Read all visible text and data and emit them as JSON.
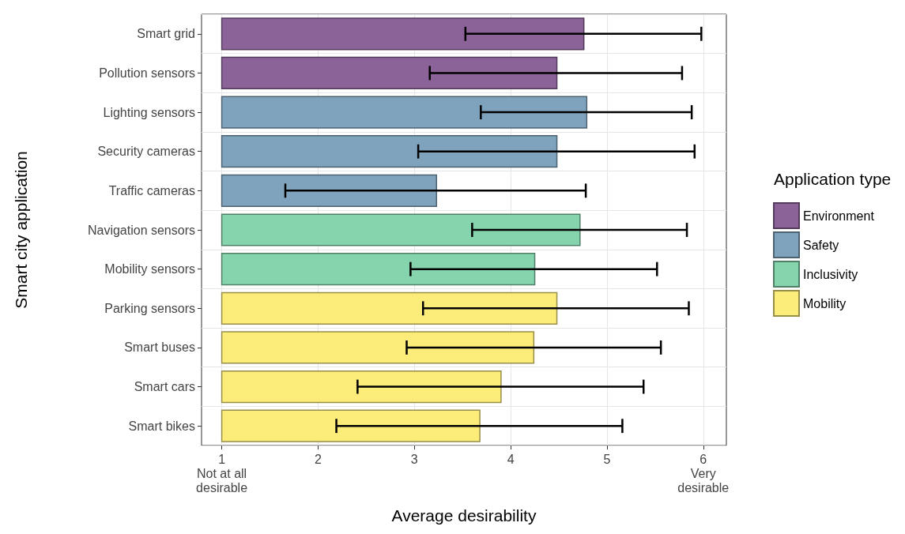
{
  "chart_data": {
    "type": "bar",
    "orientation": "horizontal",
    "xlabel": "Average desirability",
    "ylabel": "Smart city application",
    "legend_title": "Application type",
    "categories": [
      "Smart grid",
      "Pollution sensors",
      "Lighting sensors",
      "Security cameras",
      "Traffic cameras",
      "Navigation sensors",
      "Mobility sensors",
      "Parking sensors",
      "Smart buses",
      "Smart cars",
      "Smart bikes"
    ],
    "series": [
      {
        "name": "Environment",
        "color": "#8c6399",
        "base": [
          1,
          1,
          null,
          null,
          null,
          null,
          null,
          null,
          null,
          null,
          null
        ],
        "values": [
          3.76,
          3.48,
          null,
          null,
          null,
          null,
          null,
          null,
          null,
          null,
          null
        ],
        "errors": [
          [
            3.53,
            5.98
          ],
          [
            3.16,
            5.78
          ],
          null,
          null,
          null,
          null,
          null,
          null,
          null,
          null,
          null
        ]
      },
      {
        "name": "Safety",
        "color": "#80a3bd",
        "base": [
          null,
          null,
          1,
          1,
          1,
          null,
          null,
          null,
          null,
          null,
          null
        ],
        "values": [
          null,
          null,
          3.79,
          3.48,
          2.23,
          null,
          null,
          null,
          null,
          null,
          null
        ],
        "errors": [
          null,
          null,
          [
            3.69,
            5.88
          ],
          [
            3.04,
            5.91
          ],
          [
            1.66,
            4.78
          ],
          null,
          null,
          null,
          null,
          null,
          null
        ]
      },
      {
        "name": "Inclusivity",
        "color": "#86d4ad",
        "base": [
          null,
          null,
          null,
          null,
          null,
          1,
          1,
          null,
          null,
          null,
          null
        ],
        "values": [
          null,
          null,
          null,
          null,
          null,
          3.72,
          3.25,
          null,
          null,
          null,
          null
        ],
        "errors": [
          null,
          null,
          null,
          null,
          null,
          [
            3.6,
            5.83
          ],
          [
            2.96,
            5.52
          ],
          null,
          null,
          null,
          null
        ]
      },
      {
        "name": "Mobility",
        "color": "#fcec7a",
        "base": [
          null,
          null,
          null,
          null,
          null,
          null,
          null,
          1,
          1,
          1,
          1
        ],
        "values": [
          null,
          null,
          null,
          null,
          null,
          null,
          null,
          3.48,
          3.24,
          2.9,
          2.68
        ],
        "errors": [
          null,
          null,
          null,
          null,
          null,
          null,
          null,
          [
            3.09,
            5.85
          ],
          [
            2.92,
            5.56
          ],
          [
            2.41,
            5.38
          ],
          [
            2.19,
            5.16
          ]
        ]
      }
    ],
    "xlim": [
      0.79,
      6.24
    ],
    "xticks": [
      {
        "value": 1,
        "label": "1\nNot at all\ndesirable"
      },
      2,
      3,
      4,
      5,
      {
        "value": 6,
        "label": "6\nVery\ndesirable"
      }
    ],
    "grid": true,
    "legend": "right"
  }
}
